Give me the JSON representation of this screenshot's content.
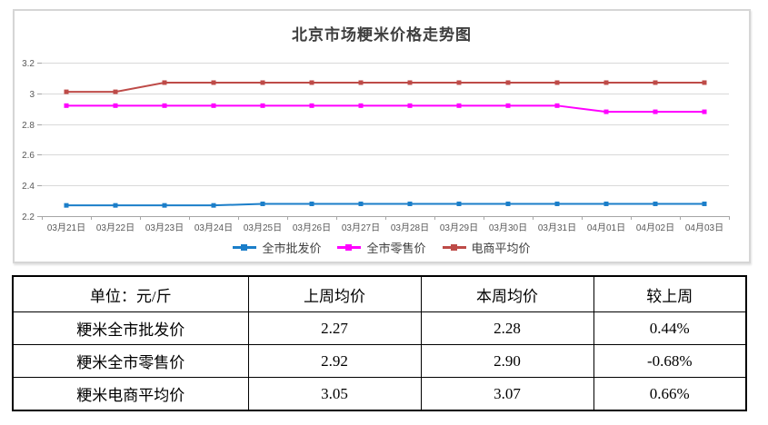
{
  "chart_data": {
    "type": "line",
    "title": "北京市场粳米价格走势图",
    "categories": [
      "03月21日",
      "03月22日",
      "03月23日",
      "03月24日",
      "03月25日",
      "03月26日",
      "03月27日",
      "03月28日",
      "03月29日",
      "03月30日",
      "03月31日",
      "04月01日",
      "04月02日",
      "04月03日"
    ],
    "series": [
      {
        "name": "全市批发价",
        "color": "#1B7EC9",
        "values": [
          2.27,
          2.27,
          2.27,
          2.27,
          2.28,
          2.28,
          2.28,
          2.28,
          2.28,
          2.28,
          2.28,
          2.28,
          2.28,
          2.28
        ]
      },
      {
        "name": "全市零售价",
        "color": "#FF00FF",
        "values": [
          2.92,
          2.92,
          2.92,
          2.92,
          2.92,
          2.92,
          2.92,
          2.92,
          2.92,
          2.92,
          2.92,
          2.88,
          2.88,
          2.88
        ]
      },
      {
        "name": "电商平均价",
        "color": "#BE4B48",
        "values": [
          3.01,
          3.01,
          3.07,
          3.07,
          3.07,
          3.07,
          3.07,
          3.07,
          3.07,
          3.07,
          3.07,
          3.07,
          3.07,
          3.07
        ]
      }
    ],
    "ylim": [
      2.2,
      3.2
    ],
    "yticks": [
      3.2,
      3,
      2.8,
      2.6,
      2.4,
      2.2
    ],
    "grid": true,
    "legend_position": "bottom",
    "colors": {
      "grid": "#D9D9D9",
      "axis": "#A6A6A6",
      "tick_label": "#595959",
      "title": "#3F3F3F"
    }
  },
  "table": {
    "headers": [
      "单位：元/斤",
      "上周均价",
      "本周均价",
      "较上周"
    ],
    "rows": [
      [
        "粳米全市批发价",
        "2.27",
        "2.28",
        "0.44%"
      ],
      [
        "粳米全市零售价",
        "2.92",
        "2.90",
        "-0.68%"
      ],
      [
        "粳米电商平均价",
        "3.05",
        "3.07",
        "0.66%"
      ]
    ]
  }
}
